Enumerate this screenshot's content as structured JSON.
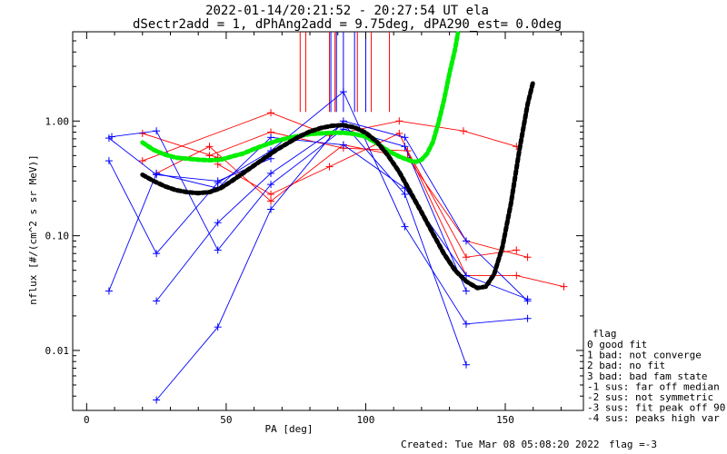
{
  "chart_data": {
    "type": "line",
    "title": "2022-01-14/20:21:52 - 20:27:54 UT ela",
    "subtitle": "dSectr2add = 1, dPhAng2add = 9.75deg, dPA290_est=   0.0deg",
    "xlabel": "PA [deg]",
    "ylabel": "nflux [#/(cm^2 s sr MeV)]",
    "xlim": [
      -5,
      178
    ],
    "ylim": [
      0.003,
      6
    ],
    "y_scale": "log",
    "x_ticks": [
      0,
      50,
      100,
      150
    ],
    "x_tick_labels": [
      "0",
      "50",
      "100",
      "150"
    ],
    "y_ticks": [
      0.01,
      0.1,
      1.0
    ],
    "y_tick_labels": [
      "0.01",
      "0.10",
      "1.00"
    ],
    "grid": false,
    "footer": {
      "created": "Created: Tue Mar 08 05:08:20 2022",
      "flag": "flag =-3"
    },
    "legend": {
      "title": "flag",
      "entries": [
        " 0 good fit",
        " 1 bad: not converge",
        " 2 bad: no fit",
        " 3 bad: bad fam state",
        "-1 sus: far off median",
        "-2 sus: not symmetric",
        "-3 sus: fit peak off 90",
        "-4 sus: peaks high var"
      ]
    },
    "vertical_markers": {
      "red_x": [
        76.5,
        78.5,
        87,
        89,
        97,
        102,
        108.5
      ],
      "blue_x": [
        87.5,
        89.5,
        92,
        96,
        100
      ],
      "y_low": 1.2
    },
    "series": [
      {
        "color": "#ff0000",
        "kind": "crossline",
        "x": [
          20,
          47
        ],
        "y": [
          0.78,
          0.48
        ]
      },
      {
        "color": "#ff0000",
        "kind": "crossline",
        "x": [
          20,
          66,
          87,
          112,
          135,
          154
        ],
        "y": [
          0.45,
          1.18,
          0.75,
          1.0,
          0.82,
          0.6
        ]
      },
      {
        "color": "#ff0000",
        "kind": "crossline",
        "x": [
          25,
          44,
          66,
          92,
          115,
          136,
          158
        ],
        "y": [
          0.35,
          0.6,
          0.2,
          0.62,
          0.48,
          0.09,
          0.065
        ]
      },
      {
        "color": "#ff0000",
        "kind": "crossline",
        "x": [
          47,
          66,
          87,
          112,
          136,
          154,
          171
        ],
        "y": [
          0.42,
          0.23,
          0.4,
          0.78,
          0.045,
          0.045,
          0.036
        ]
      },
      {
        "color": "#ff0000",
        "kind": "crossline",
        "x": [
          44,
          66,
          92,
          115,
          136,
          154
        ],
        "y": [
          0.5,
          0.8,
          0.58,
          0.55,
          0.065,
          0.075
        ]
      },
      {
        "color": "#0000ff",
        "kind": "crossline",
        "x": [
          8,
          25,
          47,
          66,
          92,
          114,
          136,
          158
        ],
        "y": [
          0.033,
          0.35,
          0.26,
          0.72,
          0.62,
          0.26,
          0.045,
          0.028
        ]
      },
      {
        "color": "#0000ff",
        "kind": "crossline",
        "x": [
          8,
          25,
          47,
          66,
          92,
          114,
          136,
          158
        ],
        "y": [
          0.45,
          0.07,
          0.29,
          0.55,
          1.8,
          0.12,
          0.017,
          0.019
        ]
      },
      {
        "color": "#0000ff",
        "kind": "crossline",
        "x": [
          25,
          47,
          66,
          92,
          114,
          136
        ],
        "y": [
          0.027,
          0.13,
          0.35,
          0.95,
          0.23,
          0.0075
        ]
      },
      {
        "color": "#0000ff",
        "kind": "crossline",
        "x": [
          25,
          47,
          66,
          92,
          114,
          136,
          158
        ],
        "y": [
          0.0037,
          0.016,
          0.17,
          1.0,
          0.72,
          0.09,
          0.027
        ]
      },
      {
        "color": "#0000ff",
        "kind": "crossline",
        "x": [
          9,
          25,
          47,
          66,
          92,
          114,
          136
        ],
        "y": [
          0.73,
          0.82,
          0.075,
          0.28,
          0.85,
          0.6,
          0.033
        ]
      },
      {
        "color": "#0000ff",
        "kind": "crossline",
        "x": [
          8,
          25,
          47,
          66
        ],
        "y": [
          0.71,
          0.34,
          0.3,
          0.47
        ]
      },
      {
        "color": "#00ee00",
        "kind": "dots",
        "x": [
          20,
          24,
          28,
          32,
          36,
          40,
          44,
          48,
          52,
          56,
          60,
          64,
          68,
          72,
          76,
          80,
          84,
          88,
          92,
          96,
          100,
          104,
          108,
          112,
          116,
          118,
          120,
          122,
          124,
          126,
          128,
          130,
          132,
          133
        ],
        "y": [
          0.65,
          0.56,
          0.51,
          0.48,
          0.47,
          0.46,
          0.455,
          0.46,
          0.49,
          0.52,
          0.57,
          0.62,
          0.67,
          0.71,
          0.74,
          0.77,
          0.78,
          0.79,
          0.79,
          0.77,
          0.73,
          0.64,
          0.55,
          0.49,
          0.45,
          0.44,
          0.46,
          0.52,
          0.65,
          0.95,
          1.5,
          2.6,
          4.2,
          5.8
        ]
      },
      {
        "color": "#000000",
        "kind": "dots",
        "x": [
          20,
          24,
          28,
          32,
          36,
          40,
          44,
          48,
          52,
          56,
          60,
          64,
          68,
          72,
          76,
          80,
          84,
          88,
          92,
          96,
          100,
          104,
          108,
          112,
          116,
          120,
          124,
          128,
          132,
          136,
          140,
          143,
          146,
          149,
          152,
          155,
          158,
          160
        ],
        "y": [
          0.34,
          0.3,
          0.27,
          0.25,
          0.24,
          0.235,
          0.24,
          0.26,
          0.3,
          0.35,
          0.41,
          0.48,
          0.56,
          0.64,
          0.73,
          0.81,
          0.87,
          0.91,
          0.92,
          0.88,
          0.79,
          0.66,
          0.5,
          0.36,
          0.24,
          0.16,
          0.105,
          0.07,
          0.05,
          0.04,
          0.035,
          0.036,
          0.046,
          0.08,
          0.19,
          0.55,
          1.4,
          2.2
        ]
      }
    ]
  }
}
